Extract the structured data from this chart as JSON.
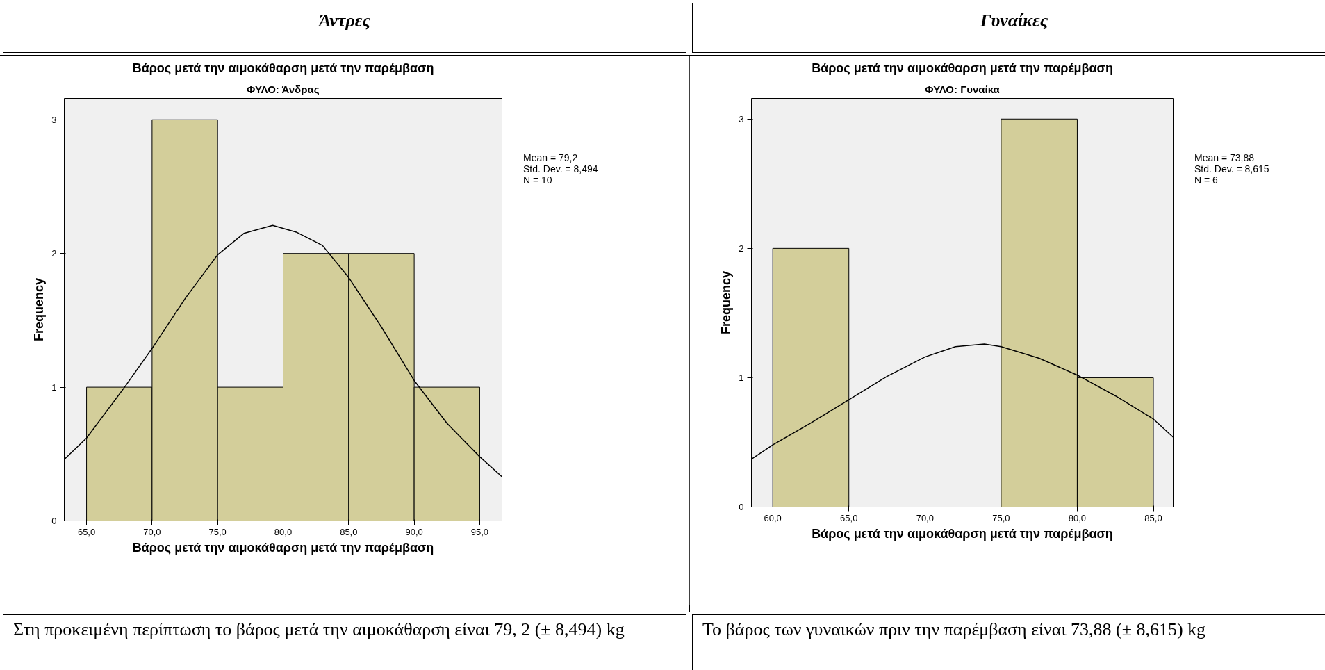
{
  "chart_data": [
    {
      "type": "histogram",
      "title": "Βάρος μετά την αιμοκάθαρση μετά την παρέμβαση",
      "subtitle": "ΦΥΛΟ: Άνδρας",
      "xlabel": "Βάρος μετά την αιμοκάθαρση μετά την παρέμβαση",
      "ylabel": "Frequency",
      "bins": [
        65,
        70,
        75,
        80,
        85,
        90,
        95
      ],
      "values": [
        1,
        3,
        1,
        2,
        2,
        1
      ],
      "color": "#d3ce9a",
      "xlim": [
        63.3,
        96.7
      ],
      "ylim": [
        0,
        3.16
      ],
      "xticks": [
        {
          "value": 65,
          "label": "65,0"
        },
        {
          "value": 70,
          "label": "70,0"
        },
        {
          "value": 75,
          "label": "75,0"
        },
        {
          "value": 80,
          "label": "80,0"
        },
        {
          "value": 85,
          "label": "85,0"
        },
        {
          "value": 90,
          "label": "90,0"
        },
        {
          "value": 95,
          "label": "95,0"
        }
      ],
      "yticks": [
        0,
        1,
        2,
        3
      ],
      "series": [
        {
          "type": "line",
          "color": "#000000",
          "x": [
            63.3,
            65,
            67.9,
            70,
            72.5,
            75,
            77,
            79.2,
            81,
            83,
            85,
            87.5,
            90,
            92.5,
            95,
            96.7
          ],
          "values": [
            0.46,
            0.62,
            1.0,
            1.29,
            1.66,
            1.99,
            2.15,
            2.21,
            2.16,
            2.06,
            1.82,
            1.45,
            1.05,
            0.73,
            0.48,
            0.33
          ]
        }
      ],
      "annotations": [
        "Άντρες",
        "Mean = 79,2",
        "Std. Dev. = 8,494",
        "N = 10",
        "Στη προκειμένη περίπτωση το βάρος μετά την αιμοκάθαρση είναι 79,  2  (± 8,494) kg"
      ]
    },
    {
      "type": "histogram",
      "title": "Βάρος μετά την αιμοκάθαρση μετά την παρέμβαση",
      "subtitle": "ΦΥΛΟ: Γυναίκα",
      "xlabel": "Βάρος μετά την αιμοκάθαρση μετά την παρέμβαση",
      "ylabel": "Frequency",
      "bins": [
        60,
        65,
        70,
        75,
        80,
        85
      ],
      "values": [
        2,
        0,
        0,
        3,
        1
      ],
      "color": "#d3ce9a",
      "xlim": [
        58.6,
        86.3
      ],
      "ylim": [
        0,
        3.16
      ],
      "xticks": [
        {
          "value": 60,
          "label": "60,0"
        },
        {
          "value": 65,
          "label": "65,0"
        },
        {
          "value": 70,
          "label": "70,0"
        },
        {
          "value": 75,
          "label": "75,0"
        },
        {
          "value": 80,
          "label": "80,0"
        },
        {
          "value": 85,
          "label": "85,0"
        }
      ],
      "yticks": [
        0,
        1,
        2,
        3
      ],
      "series": [
        {
          "type": "line",
          "color": "#000000",
          "x": [
            58.6,
            60,
            62.5,
            65,
            67.5,
            70,
            72,
            73.9,
            75,
            77.5,
            80,
            82.5,
            85,
            86.3
          ],
          "values": [
            0.37,
            0.48,
            0.65,
            0.83,
            1.01,
            1.16,
            1.24,
            1.26,
            1.24,
            1.15,
            1.02,
            0.86,
            0.68,
            0.54
          ]
        }
      ],
      "annotations": [
        "Γυναίκες",
        "Mean = 73,88",
        "Std. Dev. = 8,615",
        "N = 6",
        "Το βάρος των γυναικών πριν την παρέμβαση είναι 73,88 (± 8,615) kg"
      ]
    }
  ]
}
